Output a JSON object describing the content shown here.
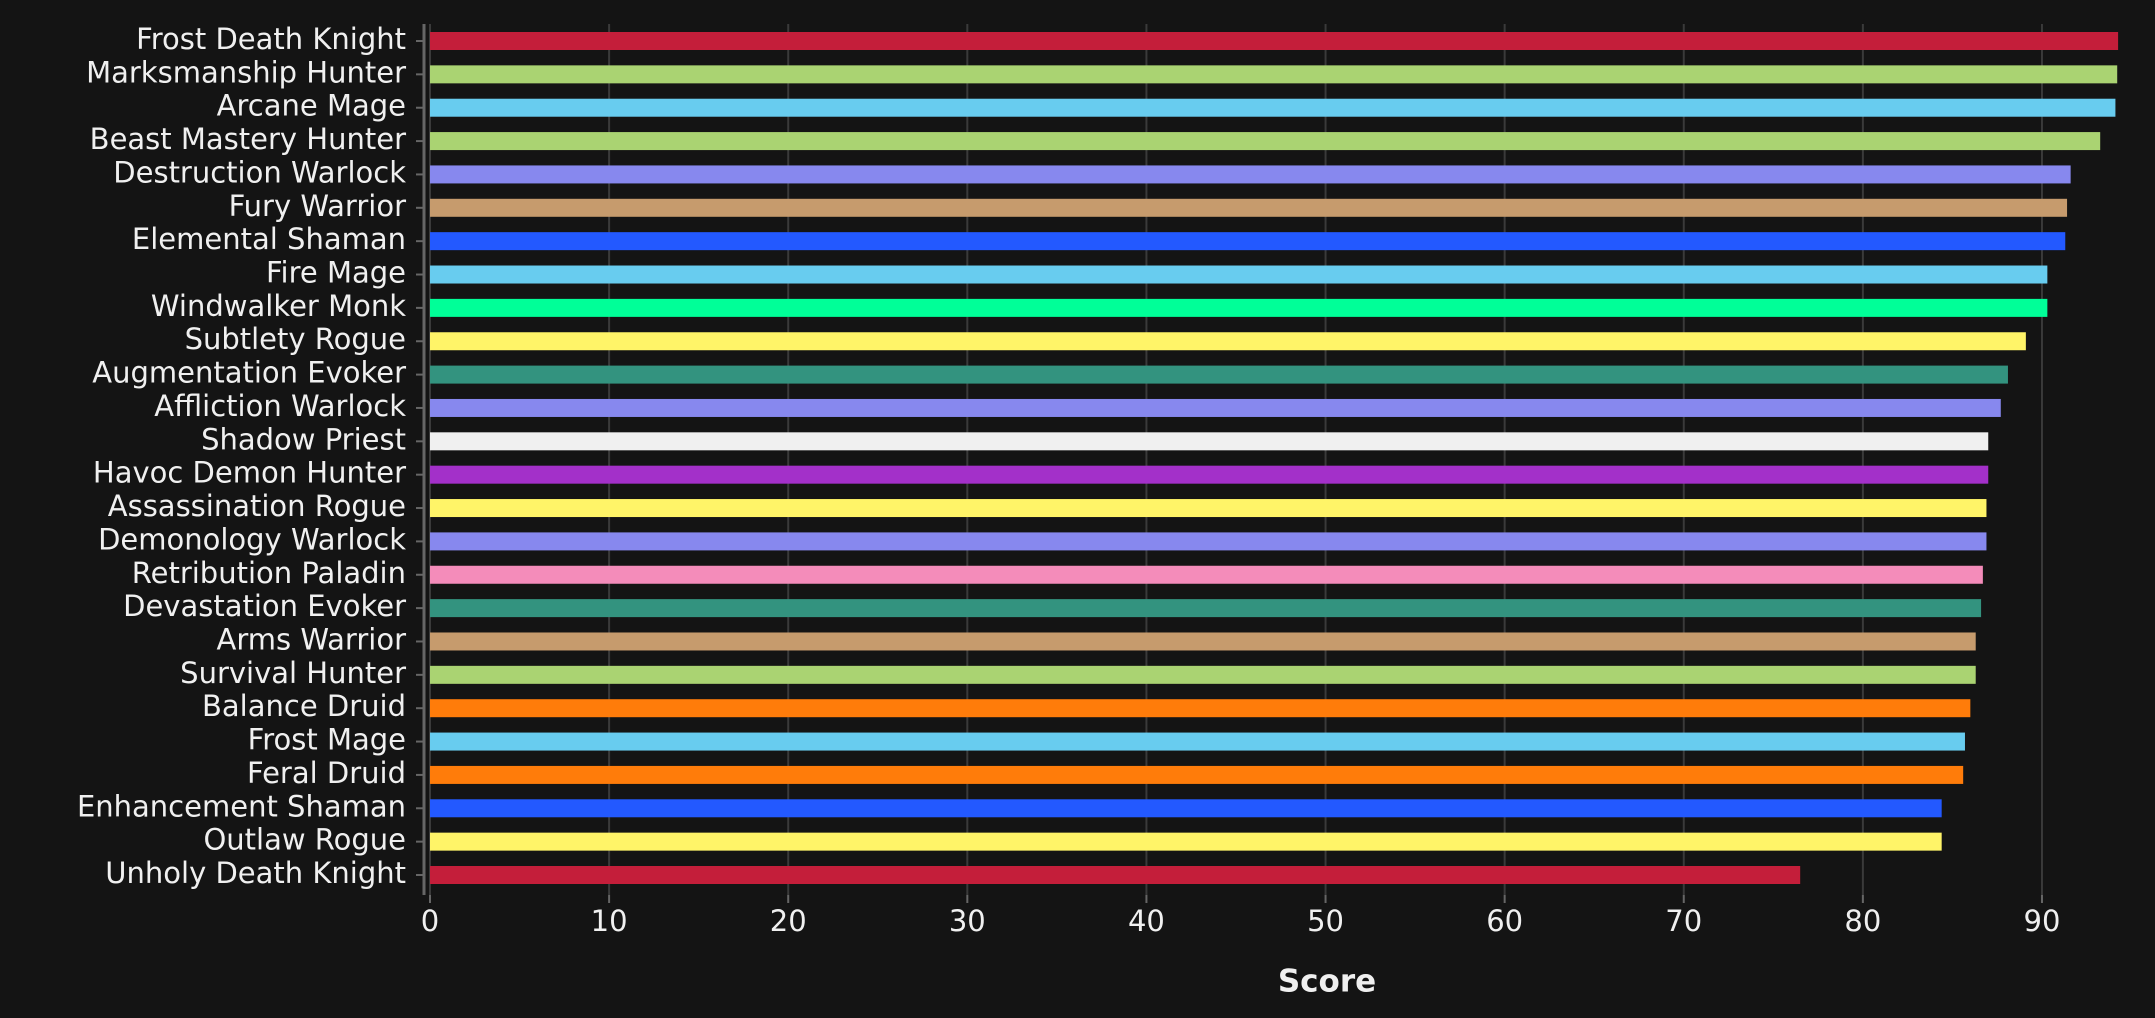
{
  "chart_data": {
    "type": "bar",
    "orientation": "horizontal",
    "x_label": "Score",
    "categories": [
      "Frost Death Knight",
      "Marksmanship Hunter",
      "Arcane Mage",
      "Beast Mastery Hunter",
      "Destruction Warlock",
      "Fury Warrior",
      "Elemental Shaman",
      "Fire Mage",
      "Windwalker Monk",
      "Subtlety Rogue",
      "Augmentation Evoker",
      "Affliction Warlock",
      "Shadow Priest",
      "Havoc Demon Hunter",
      "Assassination Rogue",
      "Demonology Warlock",
      "Retribution Paladin",
      "Devastation Evoker",
      "Arms Warrior",
      "Survival Hunter",
      "Balance Druid",
      "Frost Mage",
      "Feral Druid",
      "Enhancement Shaman",
      "Outlaw Rogue",
      "Unholy Death Knight"
    ],
    "values": [
      94.25,
      94.2,
      94.1,
      93.25,
      91.6,
      91.4,
      91.3,
      90.3,
      90.3,
      89.1,
      88.1,
      87.7,
      87.0,
      87.0,
      86.9,
      86.9,
      86.7,
      86.6,
      86.3,
      86.3,
      86.0,
      85.7,
      85.6,
      84.4,
      84.4,
      76.5
    ],
    "colors": [
      "#c41e3a",
      "#aad372",
      "#68ccef",
      "#aad372",
      "#8788ee",
      "#c69b6d",
      "#2359ff",
      "#68ccef",
      "#00ff98",
      "#fff468",
      "#33937f",
      "#8788ee",
      "#f0f0f0",
      "#a330c9",
      "#fff468",
      "#8788ee",
      "#f48cba",
      "#33937f",
      "#c69b6d",
      "#aad372",
      "#ff7c0a",
      "#68ccef",
      "#ff7c0a",
      "#2359ff",
      "#fff468",
      "#c41e3a"
    ],
    "xlim": [
      0,
      94.3
    ],
    "xticks": [
      0,
      10,
      20,
      30,
      40,
      50,
      60,
      70,
      80,
      90
    ],
    "grid": true
  }
}
